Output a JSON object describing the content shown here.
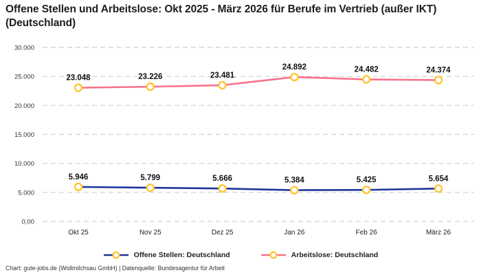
{
  "title": "Offene Stellen und Arbeitslose: Okt 2025 - März 2026 für Berufe im Vertrieb (außer IKT) (Deutschland)",
  "footer": "Chart: gute-jobs.de (Wollmilchsau GmbH) | Datenquelle: Bundesagentur für Arbeit",
  "colors": {
    "open_positions": "#1f3499",
    "unemployed": "#f8728c",
    "marker_fill": "#ffffff",
    "marker_ring": "#ffc533",
    "gridline": "#cfcfcf",
    "title_text": "#1d1d1d",
    "axis_text": "#333333",
    "label_text": "#111111"
  },
  "legend": {
    "items": [
      {
        "label": "Offene Stellen: Deutschland"
      },
      {
        "label": "Arbeitslose: Deutschland"
      }
    ]
  },
  "chart_data": {
    "type": "line",
    "categories": [
      "Okt 25",
      "Nov 25",
      "Dez 25",
      "Jan 26",
      "Feb 26",
      "März 26"
    ],
    "series": [
      {
        "name": "Offene Stellen: Deutschland",
        "color_key": "open_positions",
        "values": [
          5946,
          5799,
          5666,
          5384,
          5425,
          5654
        ],
        "labels": [
          "5.946",
          "5.799",
          "5.666",
          "5.384",
          "5.425",
          "5.654"
        ]
      },
      {
        "name": "Arbeitslose: Deutschland",
        "color_key": "unemployed",
        "values": [
          23048,
          23226,
          23481,
          24892,
          24482,
          24374
        ],
        "labels": [
          "23.048",
          "23.226",
          "23.481",
          "24.892",
          "24.482",
          "24.374"
        ]
      }
    ],
    "y_axis": {
      "min": 0,
      "max": 30000,
      "tick_step": 5000,
      "tick_labels": [
        "0,00",
        "5.000",
        "10.000",
        "15.000",
        "20.000",
        "25.000",
        "30.000"
      ]
    },
    "grid": "dashed horizontal lines",
    "legend_position": "bottom",
    "marker_style": "yellow ring with white fill"
  }
}
